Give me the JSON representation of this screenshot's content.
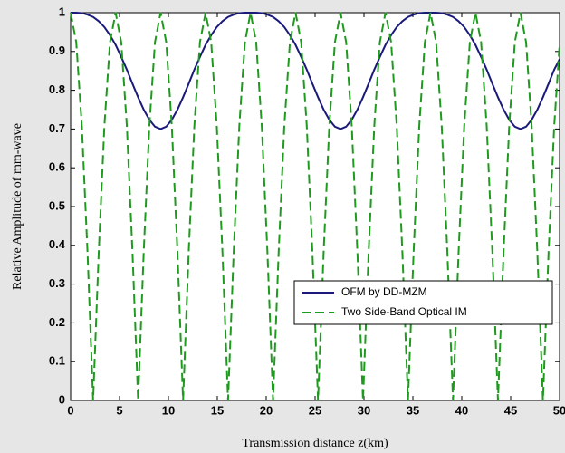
{
  "chart_data": {
    "type": "line",
    "xlabel": "Transmission distance z(km)",
    "ylabel": "Relative Amplitude of mm-wave",
    "x": [
      0,
      0.575,
      1.15,
      1.725,
      2.3,
      2.875,
      3.45,
      4.025,
      4.6,
      5.175,
      5.75,
      6.325,
      6.9,
      7.475,
      8.05,
      8.625,
      9.2,
      9.775,
      10.35,
      10.925,
      11.5,
      12.075,
      12.65,
      13.225,
      13.8,
      14.375,
      14.95,
      15.525,
      16.1,
      16.675,
      17.25,
      17.825,
      18.4,
      18.975,
      19.55,
      20.125,
      20.7,
      21.275,
      21.85,
      22.425,
      23,
      23.575,
      24.15,
      24.725,
      25.3,
      25.875,
      26.45,
      27.025,
      27.6,
      28.175,
      28.75,
      29.325,
      29.9,
      30.475,
      31.05,
      31.625,
      32.2,
      32.775,
      33.35,
      33.925,
      34.5,
      35.075,
      35.65,
      36.225,
      36.8,
      37.375,
      37.95,
      38.525,
      39.1,
      39.675,
      40.25,
      40.825,
      41.4,
      41.975,
      42.55,
      43.125,
      43.7,
      44.275,
      44.85,
      45.425,
      46,
      46.575,
      47.15,
      47.725,
      48.3,
      48.875,
      49.45,
      50
    ],
    "series": [
      {
        "name": "OFM by DD-MZM",
        "color": "#1a1a7a",
        "dash": false,
        "values": [
          1,
          1,
          0.999,
          0.995,
          0.989,
          0.978,
          0.963,
          0.942,
          0.917,
          0.886,
          0.853,
          0.817,
          0.782,
          0.75,
          0.724,
          0.706,
          0.7,
          0.706,
          0.724,
          0.75,
          0.782,
          0.817,
          0.853,
          0.886,
          0.917,
          0.942,
          0.963,
          0.978,
          0.989,
          0.995,
          0.999,
          1,
          1,
          1,
          0.999,
          0.995,
          0.989,
          0.978,
          0.963,
          0.942,
          0.917,
          0.886,
          0.853,
          0.817,
          0.782,
          0.75,
          0.724,
          0.706,
          0.7,
          0.706,
          0.724,
          0.75,
          0.782,
          0.817,
          0.853,
          0.886,
          0.917,
          0.942,
          0.963,
          0.978,
          0.989,
          0.995,
          0.999,
          1,
          1,
          1,
          0.999,
          0.995,
          0.989,
          0.978,
          0.963,
          0.942,
          0.917,
          0.886,
          0.853,
          0.817,
          0.782,
          0.75,
          0.724,
          0.706,
          0.7,
          0.706,
          0.724,
          0.75,
          0.782,
          0.817,
          0.853,
          0.88
        ]
      },
      {
        "name": "Two Side-Band Optical IM",
        "color": "#1f9a1f",
        "dash": true,
        "values": [
          1,
          0.924,
          0.707,
          0.383,
          0,
          0.383,
          0.707,
          0.924,
          1,
          0.924,
          0.707,
          0.383,
          0,
          0.383,
          0.707,
          0.924,
          1,
          0.924,
          0.707,
          0.383,
          0,
          0.383,
          0.707,
          0.924,
          1,
          0.924,
          0.707,
          0.383,
          0,
          0.383,
          0.707,
          0.924,
          1,
          0.924,
          0.707,
          0.383,
          0,
          0.383,
          0.707,
          0.924,
          1,
          0.924,
          0.707,
          0.383,
          0,
          0.383,
          0.707,
          0.924,
          1,
          0.924,
          0.707,
          0.383,
          0,
          0.383,
          0.707,
          0.924,
          1,
          0.924,
          0.707,
          0.383,
          0,
          0.383,
          0.707,
          0.924,
          1,
          0.924,
          0.707,
          0.383,
          0,
          0.383,
          0.707,
          0.924,
          1,
          0.924,
          0.707,
          0.383,
          0,
          0.383,
          0.707,
          0.924,
          1,
          0.924,
          0.707,
          0.383,
          0,
          0.383,
          0.707,
          0.917
        ]
      }
    ],
    "xlim": [
      0,
      50
    ],
    "xticks": [
      0,
      5,
      10,
      15,
      20,
      25,
      30,
      35,
      40,
      45,
      50
    ],
    "ylim": [
      0,
      1
    ],
    "yticks": [
      0,
      0.1,
      0.2,
      0.3,
      0.4,
      0.5,
      0.6,
      0.7,
      0.8,
      0.9,
      1
    ],
    "grid": false,
    "legend": "lower right"
  }
}
